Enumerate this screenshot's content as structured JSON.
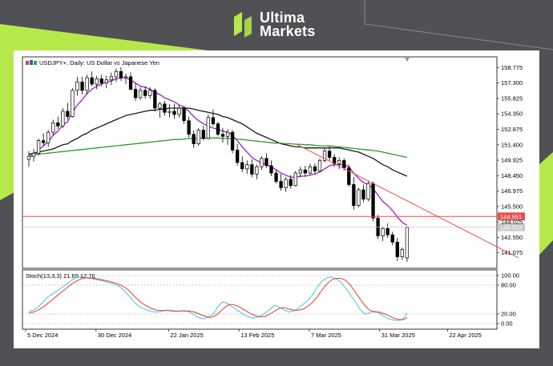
{
  "brand": {
    "line1": "Ultima",
    "line2": "Markets",
    "accent": "#b6e84a"
  },
  "chart_data": [
    {
      "type": "candlestick",
      "title": "USDJPY+, Daily:  US Dollar vs Japanese Yen",
      "ylim": [
        139.6,
        159.8
      ],
      "yticks": [
        "158.775",
        "157.300",
        "155.825",
        "154.350",
        "152.875",
        "151.400",
        "149.925",
        "148.450",
        "146.975",
        "145.500",
        "144.025",
        "142.550",
        "141.075"
      ],
      "xtick_labels": [
        "5 Dec 2024",
        "30 Dec 2024",
        "22 Jan 2025",
        "13 Feb 2025",
        "7 Mar 2025",
        "31 Mar 2025",
        "22 Apr 2025"
      ],
      "horizontal_line": {
        "value": 144.551,
        "label": "144.551",
        "color": "#e8504a"
      },
      "last_price": {
        "value": 143.533,
        "label": "143.533"
      },
      "trendline": {
        "from": [
          55,
          151.5
        ],
        "to": [
          101,
          140.6
        ],
        "color": "#e8504a"
      },
      "candles": [
        [
          150.0,
          150.8,
          149.3,
          150.3
        ],
        [
          150.3,
          151.0,
          149.8,
          150.6
        ],
        [
          150.6,
          152.0,
          150.4,
          151.8
        ],
        [
          151.8,
          152.5,
          151.3,
          151.6
        ],
        [
          151.6,
          152.8,
          151.2,
          152.6
        ],
        [
          152.6,
          153.8,
          152.3,
          153.5
        ],
        [
          153.5,
          154.1,
          152.9,
          153.2
        ],
        [
          153.2,
          154.9,
          153.0,
          154.6
        ],
        [
          154.6,
          155.4,
          153.8,
          154.1
        ],
        [
          154.1,
          156.8,
          154.0,
          156.6
        ],
        [
          156.6,
          157.9,
          156.1,
          157.4
        ],
        [
          157.4,
          157.9,
          156.2,
          156.6
        ],
        [
          156.6,
          158.1,
          156.2,
          157.8
        ],
        [
          157.8,
          158.4,
          157.0,
          157.2
        ],
        [
          157.2,
          158.0,
          156.7,
          157.7
        ],
        [
          157.7,
          158.1,
          157.0,
          157.3
        ],
        [
          157.3,
          158.0,
          156.8,
          157.6
        ],
        [
          157.6,
          158.3,
          157.1,
          157.9
        ],
        [
          157.9,
          158.7,
          157.4,
          158.4
        ],
        [
          158.4,
          158.8,
          157.5,
          157.8
        ],
        [
          157.8,
          158.2,
          157.2,
          157.9
        ],
        [
          157.9,
          158.3,
          156.6,
          156.7
        ],
        [
          156.7,
          157.3,
          155.6,
          155.9
        ],
        [
          155.9,
          156.9,
          155.7,
          156.6
        ],
        [
          156.6,
          157.0,
          155.8,
          156.1
        ],
        [
          156.1,
          156.9,
          155.8,
          156.6
        ],
        [
          156.6,
          156.8,
          154.6,
          154.9
        ],
        [
          154.9,
          155.5,
          154.0,
          155.3
        ],
        [
          155.3,
          155.6,
          154.2,
          154.5
        ],
        [
          154.5,
          155.3,
          154.0,
          154.6
        ],
        [
          154.6,
          155.3,
          153.9,
          154.3
        ],
        [
          154.3,
          155.2,
          154.0,
          154.9
        ],
        [
          154.9,
          155.1,
          153.4,
          153.7
        ],
        [
          153.7,
          154.1,
          152.1,
          152.4
        ],
        [
          152.4,
          152.8,
          151.1,
          151.5
        ],
        [
          151.5,
          153.0,
          151.3,
          152.8
        ],
        [
          152.8,
          153.2,
          151.8,
          152.0
        ],
        [
          152.0,
          154.3,
          151.9,
          154.0
        ],
        [
          154.0,
          154.8,
          153.2,
          153.4
        ],
        [
          153.4,
          153.6,
          152.2,
          152.4
        ],
        [
          152.4,
          153.0,
          151.6,
          152.2
        ],
        [
          152.2,
          152.9,
          151.4,
          152.6
        ],
        [
          152.6,
          152.8,
          150.6,
          150.9
        ],
        [
          150.9,
          151.5,
          149.4,
          149.7
        ],
        [
          149.7,
          150.3,
          148.8,
          149.1
        ],
        [
          149.1,
          149.9,
          148.6,
          149.5
        ],
        [
          149.5,
          150.0,
          148.3,
          148.6
        ],
        [
          148.6,
          149.5,
          148.1,
          149.3
        ],
        [
          149.3,
          150.3,
          149.0,
          150.1
        ],
        [
          150.1,
          150.6,
          149.2,
          149.4
        ],
        [
          149.4,
          149.9,
          148.4,
          148.7
        ],
        [
          148.7,
          149.0,
          147.7,
          147.9
        ],
        [
          147.9,
          148.6,
          147.0,
          147.3
        ],
        [
          147.3,
          148.3,
          146.9,
          148.1
        ],
        [
          148.1,
          148.5,
          147.2,
          147.5
        ],
        [
          147.5,
          148.9,
          147.4,
          148.7
        ],
        [
          148.7,
          149.3,
          148.3,
          149.0
        ],
        [
          149.0,
          149.4,
          148.4,
          148.7
        ],
        [
          148.7,
          149.6,
          148.5,
          149.3
        ],
        [
          149.3,
          149.6,
          148.6,
          148.9
        ],
        [
          148.9,
          150.1,
          148.8,
          149.9
        ],
        [
          149.9,
          151.1,
          149.7,
          150.8
        ],
        [
          150.8,
          151.3,
          149.9,
          150.2
        ],
        [
          150.2,
          150.5,
          149.3,
          149.6
        ],
        [
          149.6,
          150.2,
          149.1,
          149.9
        ],
        [
          149.9,
          150.1,
          148.9,
          149.2
        ],
        [
          149.2,
          149.5,
          147.4,
          147.6
        ],
        [
          147.6,
          148.3,
          145.2,
          145.6
        ],
        [
          145.6,
          147.3,
          145.4,
          147.1
        ],
        [
          147.1,
          147.6,
          145.9,
          146.2
        ],
        [
          146.2,
          147.9,
          146.0,
          147.7
        ],
        [
          147.7,
          147.9,
          144.1,
          144.4
        ],
        [
          144.4,
          144.7,
          142.4,
          142.7
        ],
        [
          142.7,
          143.6,
          142.2,
          143.4
        ],
        [
          143.4,
          143.9,
          142.5,
          142.8
        ],
        [
          142.8,
          143.1,
          141.8,
          142.1
        ],
        [
          142.1,
          142.5,
          140.3,
          140.7
        ],
        [
          140.7,
          141.6,
          140.4,
          141.4
        ],
        [
          140.6,
          143.6,
          140.2,
          143.5
        ]
      ],
      "series": [
        {
          "name": "",
          "color": "#a020c8",
          "values": [
            150.2,
            150.4,
            150.9,
            151.3,
            151.7,
            152.3,
            152.7,
            153.3,
            153.6,
            154.5,
            155.2,
            155.7,
            156.3,
            156.7,
            157.0,
            157.2,
            157.4,
            157.5,
            157.7,
            157.8,
            157.8,
            157.6,
            157.3,
            157.0,
            156.9,
            156.7,
            156.4,
            156.2,
            155.9,
            155.7,
            155.5,
            155.2,
            155.0,
            154.6,
            154.1,
            153.7,
            153.4,
            153.2,
            153.0,
            152.9,
            152.7,
            152.6,
            152.3,
            151.8,
            151.2,
            150.7,
            150.2,
            149.9,
            149.7,
            149.5,
            149.3,
            149.0,
            148.7,
            148.5,
            148.3,
            148.3,
            148.4,
            148.4,
            148.5,
            148.6,
            148.8,
            149.1,
            149.4,
            149.5,
            149.5,
            149.5,
            149.3,
            148.7,
            148.2,
            147.8,
            147.6,
            147.2,
            146.6,
            146.0,
            145.6,
            145.1,
            144.5,
            144.0,
            143.7
          ]
        },
        {
          "name": "",
          "color": "#1a1a1a",
          "values": [
            150.5,
            150.6,
            150.7,
            150.8,
            150.9,
            151.0,
            151.2,
            151.4,
            151.5,
            151.8,
            152.0,
            152.3,
            152.5,
            152.8,
            153.0,
            153.2,
            153.4,
            153.6,
            153.8,
            154.0,
            154.2,
            154.3,
            154.4,
            154.5,
            154.6,
            154.7,
            154.7,
            154.8,
            154.8,
            154.9,
            154.9,
            154.9,
            154.9,
            154.9,
            154.8,
            154.7,
            154.6,
            154.5,
            154.4,
            154.3,
            154.1,
            154.0,
            153.8,
            153.6,
            153.4,
            153.1,
            152.8,
            152.5,
            152.3,
            152.1,
            151.9,
            151.7,
            151.5,
            151.4,
            151.3,
            151.2,
            151.2,
            151.1,
            151.1,
            151.1,
            151.1,
            151.1,
            151.1,
            151.1,
            151.1,
            151.0,
            150.9,
            150.8,
            150.7,
            150.5,
            150.3,
            150.1,
            149.8,
            149.5,
            149.3,
            149.0,
            148.8,
            148.6,
            148.4
          ]
        },
        {
          "name": "",
          "color": "#2a9a2a",
          "values": [
            150.4,
            150.45,
            150.5,
            150.55,
            150.6,
            150.65,
            150.7,
            150.75,
            150.8,
            150.85,
            150.9,
            150.95,
            151.0,
            151.05,
            151.1,
            151.15,
            151.2,
            151.25,
            151.3,
            151.35,
            151.4,
            151.45,
            151.5,
            151.55,
            151.6,
            151.65,
            151.7,
            151.75,
            151.8,
            151.85,
            151.9,
            151.9,
            151.95,
            152.0,
            152.0,
            152.0,
            152.05,
            152.05,
            152.05,
            152.05,
            152.0,
            152.0,
            152.0,
            151.95,
            151.9,
            151.85,
            151.8,
            151.75,
            151.7,
            151.65,
            151.6,
            151.55,
            151.55,
            151.5,
            151.5,
            151.45,
            151.45,
            151.4,
            151.4,
            151.35,
            151.3,
            151.3,
            151.3,
            151.25,
            151.2,
            151.15,
            151.1,
            151.05,
            151.0,
            150.95,
            150.9,
            150.85,
            150.8,
            150.7,
            150.6,
            150.5,
            150.4,
            150.3,
            150.2
          ]
        }
      ]
    },
    {
      "type": "line",
      "title": "Stoch(13,3,3) 21.69 12.76",
      "ylim": [
        0,
        100
      ],
      "yticks": [
        "100.00",
        "80.00",
        "20.00",
        "0.00"
      ],
      "series": [
        {
          "name": "",
          "color": "#3cc8e6",
          "values": [
            25,
            28,
            35,
            45,
            55,
            62,
            68,
            75,
            82,
            90,
            95,
            97,
            96,
            94,
            92,
            90,
            88,
            85,
            82,
            78,
            70,
            60,
            48,
            38,
            32,
            28,
            25,
            24,
            25,
            28,
            26,
            25,
            26,
            27,
            24,
            18,
            12,
            10,
            14,
            20,
            35,
            45,
            42,
            35,
            28,
            22,
            16,
            12,
            12,
            16,
            22,
            30,
            38,
            34,
            28,
            24,
            26,
            32,
            40,
            48,
            60,
            76,
            88,
            95,
            97,
            93,
            86,
            74,
            60,
            46,
            30,
            20,
            22,
            26,
            22,
            16,
            10,
            8,
            6,
            8,
            22
          ]
        },
        {
          "name": "",
          "color": "#e83a2a",
          "values": [
            22,
            24,
            28,
            34,
            42,
            50,
            58,
            66,
            74,
            82,
            88,
            93,
            95,
            95,
            94,
            92,
            90,
            88,
            85,
            82,
            77,
            70,
            60,
            50,
            42,
            36,
            31,
            28,
            27,
            27,
            27,
            26,
            26,
            26,
            26,
            24,
            20,
            16,
            13,
            14,
            20,
            30,
            38,
            40,
            37,
            32,
            26,
            20,
            16,
            14,
            15,
            20,
            26,
            32,
            33,
            30,
            28,
            28,
            30,
            36,
            44,
            56,
            70,
            82,
            91,
            94,
            94,
            90,
            80,
            66,
            52,
            38,
            28,
            24,
            24,
            21,
            17,
            12,
            9,
            8,
            12
          ]
        }
      ]
    }
  ]
}
